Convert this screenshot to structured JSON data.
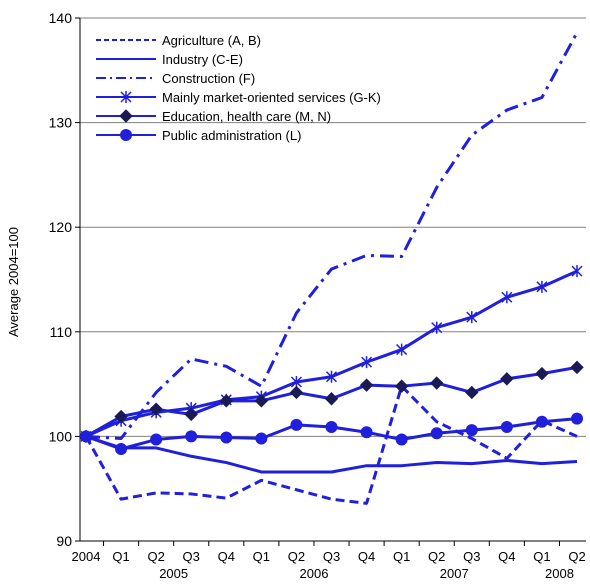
{
  "chart_data": {
    "type": "line",
    "ylabel": "Average 2004=100",
    "ylim": [
      90,
      140
    ],
    "yticks": [
      90,
      100,
      110,
      120,
      130,
      140
    ],
    "grid": "horizontal",
    "legend_position": "top-left",
    "categories": [
      "2004",
      "Q1",
      "Q2",
      "Q3",
      "Q4",
      "Q1",
      "Q2",
      "Q3",
      "Q4",
      "Q1",
      "Q2",
      "Q3",
      "Q4",
      "Q1",
      "Q2"
    ],
    "years": [
      {
        "label": "2005",
        "from": 1,
        "to": 4
      },
      {
        "label": "2006",
        "from": 5,
        "to": 8
      },
      {
        "label": "2007",
        "from": 9,
        "to": 12
      },
      {
        "label": "2008",
        "from": 13,
        "to": 14
      }
    ],
    "line_color": "#1f1fdc",
    "series": [
      {
        "name": "Agriculture (A, B)",
        "style": "dashed",
        "marker": "none",
        "values": [
          100,
          94.0,
          94.6,
          94.5,
          94.1,
          95.8,
          94.9,
          94.0,
          93.6,
          104.8,
          101.4,
          99.8,
          97.9,
          101.5,
          100.0
        ]
      },
      {
        "name": "Industry (C-E)",
        "style": "solid",
        "marker": "none",
        "values": [
          100,
          98.9,
          98.9,
          98.1,
          97.5,
          96.6,
          96.6,
          96.6,
          97.2,
          97.2,
          97.5,
          97.4,
          97.7,
          97.4,
          97.6
        ]
      },
      {
        "name": "Construction (F)",
        "style": "dashdot",
        "marker": "none",
        "values": [
          100,
          99.8,
          104.2,
          107.4,
          106.7,
          104.8,
          111.8,
          116.0,
          117.3,
          117.2,
          123.8,
          128.8,
          131.2,
          132.4,
          138.6
        ]
      },
      {
        "name": "Mainly market-oriented services (G-K)",
        "style": "solid",
        "marker": "star",
        "values": [
          100,
          101.5,
          102.3,
          102.7,
          103.5,
          103.8,
          105.2,
          105.7,
          107.1,
          108.3,
          110.4,
          111.4,
          113.3,
          114.3,
          115.8
        ]
      },
      {
        "name": "Education, health care (M, N)",
        "style": "solid",
        "marker": "diamond",
        "values": [
          100,
          101.9,
          102.6,
          102.1,
          103.4,
          103.4,
          104.2,
          103.6,
          104.9,
          104.8,
          105.1,
          104.2,
          105.5,
          106.0,
          106.6
        ]
      },
      {
        "name": "Public administration (L)",
        "style": "solid",
        "marker": "circle",
        "values": [
          100,
          98.8,
          99.7,
          100.0,
          99.9,
          99.8,
          101.1,
          100.9,
          100.4,
          99.7,
          100.3,
          100.6,
          100.9,
          101.4,
          101.7
        ]
      }
    ]
  }
}
